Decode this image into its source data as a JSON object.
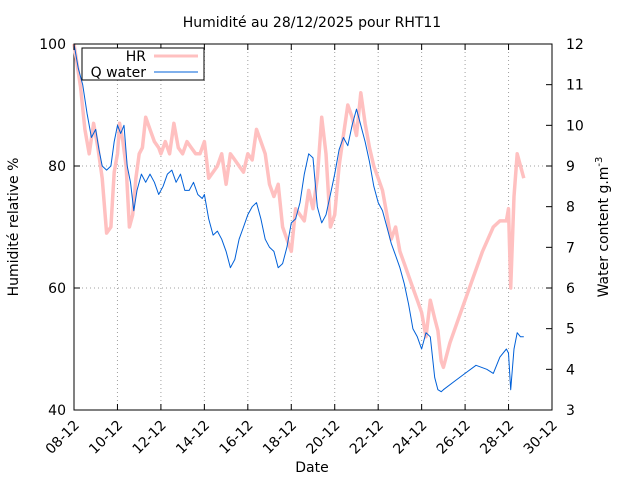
{
  "chart_data": {
    "type": "line",
    "title": "Humidité au 28/12/2025 pour RHT11",
    "xlabel": "Date",
    "ylabel_left": "Humidité relative %",
    "ylabel_right": "Water content g.m",
    "ylabel_right_sup": "-3",
    "x_ticks": [
      "08-12",
      "10-12",
      "12-12",
      "14-12",
      "16-12",
      "18-12",
      "20-12",
      "22-12",
      "24-12",
      "26-12",
      "28-12",
      "30-12"
    ],
    "x_range_days": [
      8,
      30
    ],
    "y_left_range": [
      40,
      100
    ],
    "y_left_ticks": [
      "40",
      "60",
      "80",
      "100"
    ],
    "y_right_range": [
      3,
      12
    ],
    "y_right_ticks": [
      "3",
      "4",
      "5",
      "6",
      "7",
      "8",
      "9",
      "10",
      "11",
      "12"
    ],
    "grid": true,
    "legend_placement": "top-left",
    "series": [
      {
        "name": "HR",
        "axis": "left",
        "color": "#ffc0c0",
        "x": [
          8.0,
          8.3,
          8.5,
          8.7,
          8.9,
          9.1,
          9.3,
          9.5,
          9.7,
          9.85,
          10.0,
          10.1,
          10.25,
          10.4,
          10.55,
          10.7,
          10.85,
          11.0,
          11.15,
          11.3,
          11.5,
          11.7,
          11.9,
          12.0,
          12.2,
          12.4,
          12.6,
          12.8,
          13.0,
          13.2,
          13.4,
          13.6,
          13.8,
          14.0,
          14.2,
          14.4,
          14.6,
          14.8,
          15.0,
          15.2,
          15.4,
          15.6,
          15.8,
          16.0,
          16.2,
          16.4,
          16.6,
          16.8,
          17.0,
          17.2,
          17.4,
          17.6,
          17.8,
          18.0,
          18.2,
          18.4,
          18.6,
          18.8,
          19.0,
          19.2,
          19.4,
          19.6,
          19.8,
          20.0,
          20.2,
          20.4,
          20.6,
          20.8,
          21.0,
          21.2,
          21.4,
          21.6,
          21.8,
          22.0,
          22.2,
          22.4,
          22.6,
          22.8,
          23.0,
          23.2,
          23.4,
          23.6,
          23.8,
          24.0,
          24.2,
          24.4,
          24.6,
          24.75,
          24.9,
          25.0,
          25.3,
          25.8,
          26.3,
          26.8,
          27.3,
          27.6,
          27.9,
          28.0,
          28.1,
          28.25,
          28.4,
          28.55,
          28.7
        ],
        "values": [
          100.0,
          93.0,
          86.0,
          82.0,
          87.0,
          83.0,
          78.0,
          69.0,
          70.0,
          79.0,
          82.0,
          87.0,
          84.0,
          80.0,
          70.0,
          72.0,
          78.0,
          82.0,
          83.0,
          88.0,
          86.0,
          84.0,
          83.0,
          82.0,
          84.0,
          82.0,
          87.0,
          83.0,
          82.0,
          84.0,
          83.0,
          82.0,
          82.0,
          84.0,
          78.0,
          79.0,
          80.0,
          82.0,
          77.0,
          82.0,
          81.0,
          80.0,
          79.0,
          82.0,
          81.0,
          86.0,
          84.0,
          82.0,
          77.0,
          75.0,
          77.0,
          70.0,
          68.0,
          66.0,
          73.0,
          72.0,
          71.0,
          76.0,
          73.0,
          78.0,
          88.0,
          82.0,
          70.0,
          72.0,
          80.0,
          85.0,
          90.0,
          88.0,
          85.0,
          92.0,
          87.0,
          83.0,
          80.0,
          78.0,
          76.0,
          72.0,
          68.0,
          70.0,
          66.0,
          64.0,
          62.0,
          60.0,
          58.0,
          56.0,
          52.0,
          58.0,
          55.0,
          53.0,
          48.0,
          47.0,
          51.0,
          56.0,
          61.0,
          66.0,
          70.0,
          71.0,
          71.0,
          73.0,
          60.0,
          75.0,
          82.0,
          80.0,
          78.0
        ]
      },
      {
        "name": "Q water",
        "axis": "right",
        "color": "#0060d8",
        "x": [
          8.0,
          8.2,
          8.4,
          8.6,
          8.8,
          9.0,
          9.15,
          9.3,
          9.5,
          9.7,
          9.85,
          10.0,
          10.15,
          10.3,
          10.45,
          10.6,
          10.75,
          10.9,
          11.1,
          11.3,
          11.5,
          11.7,
          11.9,
          12.1,
          12.3,
          12.5,
          12.7,
          12.9,
          13.1,
          13.3,
          13.5,
          13.7,
          13.9,
          14.0,
          14.2,
          14.4,
          14.6,
          14.8,
          15.0,
          15.2,
          15.4,
          15.6,
          15.8,
          16.0,
          16.2,
          16.4,
          16.6,
          16.8,
          17.0,
          17.2,
          17.4,
          17.6,
          17.8,
          18.0,
          18.2,
          18.4,
          18.6,
          18.8,
          19.0,
          19.2,
          19.4,
          19.6,
          19.8,
          20.0,
          20.2,
          20.4,
          20.6,
          20.8,
          21.0,
          21.2,
          21.4,
          21.6,
          21.8,
          22.0,
          22.2,
          22.4,
          22.6,
          22.8,
          23.0,
          23.2,
          23.4,
          23.6,
          23.8,
          24.0,
          24.2,
          24.4,
          24.6,
          24.75,
          24.9,
          25.0,
          25.5,
          26.0,
          26.5,
          27.0,
          27.3,
          27.6,
          27.9,
          28.0,
          28.1,
          28.25,
          28.4,
          28.55,
          28.7
        ],
        "values": [
          12.0,
          11.4,
          11.0,
          10.3,
          9.7,
          9.9,
          9.4,
          9.0,
          8.9,
          9.0,
          9.6,
          10.0,
          9.8,
          10.0,
          9.0,
          8.6,
          7.9,
          8.4,
          8.8,
          8.6,
          8.8,
          8.6,
          8.3,
          8.5,
          8.8,
          8.9,
          8.6,
          8.8,
          8.4,
          8.4,
          8.6,
          8.3,
          8.2,
          8.3,
          7.7,
          7.3,
          7.4,
          7.2,
          6.9,
          6.5,
          6.7,
          7.2,
          7.5,
          7.8,
          8.0,
          8.1,
          7.7,
          7.2,
          7.0,
          6.9,
          6.5,
          6.6,
          7.0,
          7.6,
          7.7,
          8.1,
          8.8,
          9.3,
          9.2,
          8.0,
          7.6,
          7.8,
          8.3,
          8.8,
          9.4,
          9.7,
          9.5,
          10.0,
          10.4,
          10.0,
          9.6,
          9.1,
          8.5,
          8.1,
          7.9,
          7.5,
          7.1,
          6.8,
          6.5,
          6.1,
          5.6,
          5.0,
          4.8,
          4.5,
          4.9,
          4.8,
          3.8,
          3.5,
          3.45,
          3.5,
          3.7,
          3.9,
          4.1,
          4.0,
          3.9,
          4.3,
          4.5,
          4.4,
          3.5,
          4.5,
          4.9,
          4.8,
          4.8
        ]
      }
    ]
  }
}
